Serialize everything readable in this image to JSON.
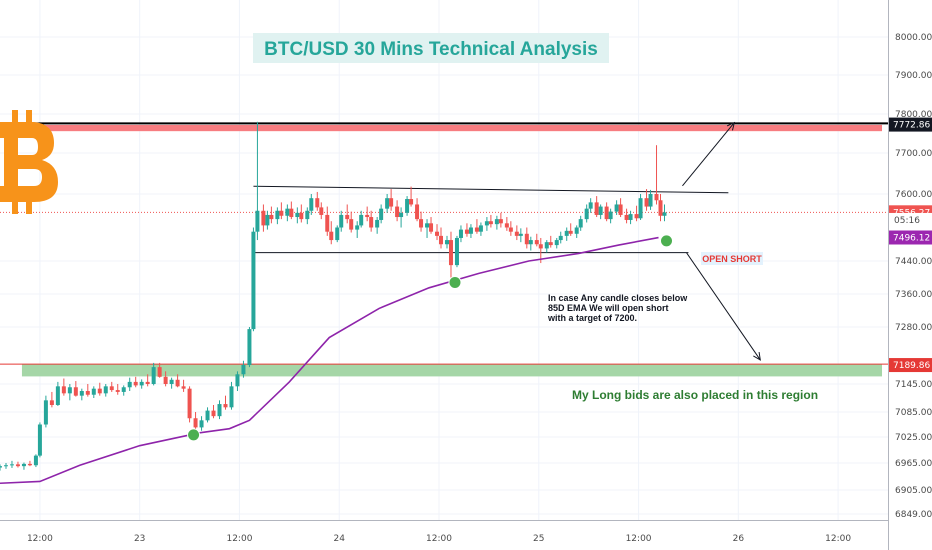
{
  "chart_data": {
    "type": "candlestick",
    "title": "BTC/USD 30 Mins Technical Analysis",
    "symbol_logo": "bitcoin-logo",
    "x_axis": {
      "ticks": [
        {
          "label": "12:00",
          "t": 0.5
        },
        {
          "label": "23",
          "t": 1.0
        },
        {
          "label": "12:00",
          "t": 1.5
        },
        {
          "label": "24",
          "t": 2.0
        },
        {
          "label": "12:00",
          "t": 2.5
        },
        {
          "label": "25",
          "t": 3.0
        },
        {
          "label": "12:00",
          "t": 3.5
        },
        {
          "label": "26",
          "t": 4.0
        },
        {
          "label": "12:00",
          "t": 4.5
        }
      ],
      "range": [
        0.3,
        4.75
      ]
    },
    "y_axis": {
      "ticks": [
        "8000.00",
        "7900.00",
        "7800.00",
        "7700.00",
        "7600.00",
        "7440.00",
        "7360.00",
        "7280.00",
        "7145.00",
        "7085.00",
        "7025.00",
        "6965.00",
        "6905.00",
        "6849.00"
      ],
      "tick_values": [
        8000,
        7900,
        7800,
        7700,
        7600,
        7440,
        7360,
        7280,
        7145,
        7085,
        7025,
        6965,
        6905,
        6849
      ],
      "range": [
        6830,
        8050
      ]
    },
    "price_labels": [
      {
        "value": 7772.86,
        "text": "7772.86",
        "color": "#131722"
      },
      {
        "value": 7556.27,
        "text": "7556.27",
        "color": "#ef5350"
      },
      {
        "value": 7538,
        "text": "05:16",
        "color": "#ef5350",
        "style": "outline"
      },
      {
        "value": 7496.12,
        "text": "7496.12",
        "color": "#9c27b0"
      },
      {
        "value": 7189.86,
        "text": "7189.86",
        "color": "#e53935"
      }
    ],
    "zones": [
      {
        "name": "resistance",
        "y_low": 7756,
        "y_high": 7772,
        "t_start": 0.44,
        "t_end": 4.72,
        "color": "#f77c80"
      },
      {
        "name": "support",
        "y_low": 7163,
        "y_high": 7192,
        "t_start": 0.41,
        "t_end": 4.72,
        "color": "#a5d6a7"
      }
    ],
    "lines": [
      {
        "name": "resistance-black",
        "points": [
          [
            0.3,
            7776
          ],
          [
            4.75,
            7776
          ]
        ],
        "color": "#000000",
        "width": 2
      },
      {
        "name": "support-red",
        "points": [
          [
            0.3,
            7192
          ],
          [
            4.75,
            7192
          ]
        ],
        "color": "#e53935",
        "width": 1
      },
      {
        "name": "channel-top",
        "points": [
          [
            1.57,
            7619
          ],
          [
            3.95,
            7603
          ]
        ],
        "color": "#131722",
        "width": 1
      },
      {
        "name": "channel-bottom",
        "points": [
          [
            1.57,
            7460
          ],
          [
            3.75,
            7460
          ]
        ],
        "color": "#131722",
        "width": 1
      },
      {
        "name": "last-price-dotted",
        "points": [
          [
            0.3,
            7556
          ],
          [
            4.75,
            7556
          ]
        ],
        "color": "#ef5350",
        "width": 1,
        "dash": true
      }
    ],
    "arrows": [
      {
        "name": "arrow-up",
        "from": [
          3.72,
          7620
        ],
        "to": [
          3.98,
          7778
        ]
      },
      {
        "name": "arrow-down",
        "from": [
          3.74,
          7460
        ],
        "to": [
          4.11,
          7202
        ]
      }
    ],
    "ema": {
      "name": "85D EMA",
      "color": "#8e24aa",
      "points": [
        [
          0.3,
          6920
        ],
        [
          0.5,
          6924
        ],
        [
          0.7,
          6960
        ],
        [
          1.0,
          7005
        ],
        [
          1.3,
          7035
        ],
        [
          1.45,
          7045
        ],
        [
          1.55,
          7065
        ],
        [
          1.75,
          7150
        ],
        [
          1.95,
          7255
        ],
        [
          2.2,
          7325
        ],
        [
          2.45,
          7375
        ],
        [
          2.7,
          7410
        ],
        [
          2.95,
          7440
        ],
        [
          3.2,
          7458
        ],
        [
          3.4,
          7478
        ],
        [
          3.6,
          7496
        ]
      ]
    },
    "markers": [
      {
        "t": 1.27,
        "value": 7030,
        "color": "#4caf50"
      },
      {
        "t": 2.58,
        "value": 7388,
        "color": "#4caf50"
      },
      {
        "t": 3.64,
        "value": 7488,
        "color": "#4caf50"
      }
    ],
    "annotations": [
      {
        "text": "OPEN SHORT",
        "color": "#e53935",
        "bg": "#e3f2fd"
      },
      {
        "text": "In case Any candle closes below",
        "color": "#131722"
      },
      {
        "text": "85D EMA We will open short",
        "color": "#131722"
      },
      {
        "text": "with a target of 7200.",
        "color": "#131722"
      },
      {
        "text": "My Long bids are also placed in this region",
        "color": "#2e7d32"
      }
    ],
    "candles": [
      [
        0.3,
        6955,
        6962,
        6948,
        6958
      ],
      [
        0.33,
        6958,
        6965,
        6952,
        6960
      ],
      [
        0.36,
        6960,
        6970,
        6954,
        6962
      ],
      [
        0.39,
        6962,
        6968,
        6955,
        6958
      ],
      [
        0.42,
        6958,
        6966,
        6950,
        6963
      ],
      [
        0.45,
        6963,
        6970,
        6958,
        6960
      ],
      [
        0.48,
        6960,
        6985,
        6956,
        6982
      ],
      [
        0.5,
        6982,
        7060,
        6978,
        7055
      ],
      [
        0.53,
        7055,
        7120,
        7048,
        7110
      ],
      [
        0.56,
        7110,
        7128,
        7095,
        7100
      ],
      [
        0.59,
        7100,
        7150,
        7098,
        7140
      ],
      [
        0.62,
        7140,
        7158,
        7120,
        7125
      ],
      [
        0.65,
        7125,
        7145,
        7110,
        7138
      ],
      [
        0.68,
        7138,
        7152,
        7118,
        7120
      ],
      [
        0.71,
        7120,
        7135,
        7110,
        7130
      ],
      [
        0.74,
        7130,
        7145,
        7118,
        7122
      ],
      [
        0.77,
        7122,
        7140,
        7115,
        7135
      ],
      [
        0.8,
        7135,
        7148,
        7120,
        7125
      ],
      [
        0.83,
        7125,
        7145,
        7118,
        7140
      ],
      [
        0.86,
        7140,
        7150,
        7128,
        7132
      ],
      [
        0.89,
        7132,
        7145,
        7122,
        7128
      ],
      [
        0.92,
        7128,
        7142,
        7120,
        7138
      ],
      [
        0.95,
        7138,
        7160,
        7130,
        7150
      ],
      [
        0.98,
        7150,
        7162,
        7138,
        7142
      ],
      [
        1.01,
        7142,
        7156,
        7135,
        7150
      ],
      [
        1.04,
        7150,
        7168,
        7140,
        7145
      ],
      [
        1.07,
        7145,
        7195,
        7142,
        7185
      ],
      [
        1.1,
        7185,
        7195,
        7160,
        7162
      ],
      [
        1.13,
        7162,
        7175,
        7140,
        7145
      ],
      [
        1.16,
        7145,
        7160,
        7135,
        7155
      ],
      [
        1.19,
        7155,
        7168,
        7138,
        7140
      ],
      [
        1.22,
        7140,
        7155,
        7128,
        7135
      ],
      [
        1.25,
        7135,
        7140,
        7060,
        7070
      ],
      [
        1.28,
        7070,
        7085,
        7038,
        7048
      ],
      [
        1.31,
        7048,
        7075,
        7040,
        7065
      ],
      [
        1.34,
        7065,
        7095,
        7060,
        7088
      ],
      [
        1.37,
        7088,
        7100,
        7070,
        7075
      ],
      [
        1.4,
        7075,
        7110,
        7068,
        7102
      ],
      [
        1.43,
        7102,
        7120,
        7090,
        7095
      ],
      [
        1.46,
        7095,
        7150,
        7090,
        7140
      ],
      [
        1.49,
        7140,
        7175,
        7130,
        7168
      ],
      [
        1.52,
        7168,
        7200,
        7160,
        7190
      ],
      [
        1.55,
        7190,
        7280,
        7185,
        7275
      ],
      [
        1.57,
        7275,
        7520,
        7270,
        7510
      ],
      [
        1.59,
        7510,
        7780,
        7490,
        7560
      ],
      [
        1.62,
        7560,
        7575,
        7510,
        7525
      ],
      [
        1.64,
        7525,
        7560,
        7515,
        7550
      ],
      [
        1.66,
        7550,
        7570,
        7530,
        7540
      ],
      [
        1.69,
        7540,
        7568,
        7528,
        7560
      ],
      [
        1.71,
        7560,
        7580,
        7540,
        7548
      ],
      [
        1.74,
        7548,
        7575,
        7535,
        7565
      ],
      [
        1.76,
        7565,
        7582,
        7540,
        7545
      ],
      [
        1.79,
        7545,
        7568,
        7530,
        7555
      ],
      [
        1.81,
        7555,
        7575,
        7532,
        7540
      ],
      [
        1.84,
        7540,
        7568,
        7528,
        7560
      ],
      [
        1.86,
        7560,
        7600,
        7550,
        7590
      ],
      [
        1.89,
        7590,
        7605,
        7560,
        7568
      ],
      [
        1.91,
        7568,
        7580,
        7540,
        7550
      ],
      [
        1.94,
        7550,
        7570,
        7500,
        7510
      ],
      [
        1.96,
        7510,
        7535,
        7480,
        7490
      ],
      [
        1.99,
        7490,
        7525,
        7485,
        7520
      ],
      [
        2.01,
        7520,
        7560,
        7510,
        7550
      ],
      [
        2.04,
        7550,
        7575,
        7530,
        7540
      ],
      [
        2.06,
        7540,
        7558,
        7508,
        7515
      ],
      [
        2.09,
        7515,
        7535,
        7495,
        7525
      ],
      [
        2.11,
        7525,
        7560,
        7520,
        7550
      ],
      [
        2.14,
        7550,
        7570,
        7535,
        7545
      ],
      [
        2.16,
        7545,
        7560,
        7510,
        7520
      ],
      [
        2.19,
        7520,
        7545,
        7505,
        7538
      ],
      [
        2.21,
        7538,
        7575,
        7530,
        7565
      ],
      [
        2.24,
        7565,
        7600,
        7555,
        7590
      ],
      [
        2.26,
        7590,
        7612,
        7560,
        7570
      ],
      [
        2.29,
        7570,
        7585,
        7535,
        7545
      ],
      [
        2.31,
        7545,
        7568,
        7520,
        7555
      ],
      [
        2.34,
        7555,
        7595,
        7548,
        7588
      ],
      [
        2.36,
        7588,
        7618,
        7570,
        7575
      ],
      [
        2.39,
        7575,
        7590,
        7535,
        7540
      ],
      [
        2.41,
        7540,
        7558,
        7510,
        7520
      ],
      [
        2.44,
        7520,
        7540,
        7495,
        7530
      ],
      [
        2.46,
        7530,
        7545,
        7505,
        7510
      ],
      [
        2.49,
        7510,
        7528,
        7490,
        7500
      ],
      [
        2.51,
        7500,
        7520,
        7470,
        7480
      ],
      [
        2.54,
        7480,
        7500,
        7470,
        7490
      ],
      [
        2.56,
        7490,
        7510,
        7400,
        7430
      ],
      [
        2.59,
        7430,
        7500,
        7425,
        7495
      ],
      [
        2.61,
        7495,
        7525,
        7485,
        7515
      ],
      [
        2.64,
        7515,
        7530,
        7498,
        7505
      ],
      [
        2.66,
        7505,
        7528,
        7495,
        7520
      ],
      [
        2.69,
        7520,
        7540,
        7505,
        7510
      ],
      [
        2.71,
        7510,
        7532,
        7500,
        7525
      ],
      [
        2.74,
        7525,
        7545,
        7512,
        7535
      ],
      [
        2.76,
        7535,
        7550,
        7520,
        7528
      ],
      [
        2.79,
        7528,
        7548,
        7515,
        7540
      ],
      [
        2.81,
        7540,
        7555,
        7520,
        7530
      ],
      [
        2.84,
        7530,
        7545,
        7512,
        7520
      ],
      [
        2.86,
        7520,
        7535,
        7500,
        7510
      ],
      [
        2.89,
        7510,
        7525,
        7490,
        7500
      ],
      [
        2.91,
        7500,
        7518,
        7485,
        7505
      ],
      [
        2.94,
        7505,
        7520,
        7470,
        7480
      ],
      [
        2.96,
        7480,
        7498,
        7465,
        7490
      ],
      [
        2.99,
        7490,
        7505,
        7475,
        7480
      ],
      [
        3.01,
        7480,
        7495,
        7435,
        7470
      ],
      [
        3.04,
        7470,
        7490,
        7460,
        7485
      ],
      [
        3.06,
        7485,
        7500,
        7472,
        7478
      ],
      [
        3.09,
        7478,
        7495,
        7470,
        7490
      ],
      [
        3.11,
        7490,
        7510,
        7482,
        7500
      ],
      [
        3.14,
        7500,
        7520,
        7488,
        7512
      ],
      [
        3.16,
        7512,
        7530,
        7500,
        7505
      ],
      [
        3.19,
        7505,
        7525,
        7495,
        7520
      ],
      [
        3.21,
        7520,
        7548,
        7512,
        7540
      ],
      [
        3.24,
        7540,
        7575,
        7532,
        7565
      ],
      [
        3.26,
        7565,
        7590,
        7555,
        7580
      ],
      [
        3.29,
        7580,
        7595,
        7545,
        7550
      ],
      [
        3.31,
        7550,
        7575,
        7540,
        7570
      ],
      [
        3.34,
        7570,
        7580,
        7535,
        7540
      ],
      [
        3.36,
        7540,
        7565,
        7530,
        7558
      ],
      [
        3.39,
        7558,
        7585,
        7550,
        7575
      ],
      [
        3.41,
        7575,
        7590,
        7545,
        7550
      ],
      [
        3.44,
        7550,
        7565,
        7530,
        7538
      ],
      [
        3.46,
        7538,
        7560,
        7528,
        7552
      ],
      [
        3.49,
        7552,
        7572,
        7535,
        7542
      ],
      [
        3.51,
        7542,
        7600,
        7538,
        7590
      ],
      [
        3.54,
        7590,
        7612,
        7560,
        7570
      ],
      [
        3.56,
        7570,
        7610,
        7562,
        7600
      ],
      [
        3.59,
        7600,
        7720,
        7575,
        7585
      ],
      [
        3.61,
        7585,
        7600,
        7535,
        7548
      ],
      [
        3.63,
        7548,
        7575,
        7535,
        7556
      ]
    ]
  }
}
